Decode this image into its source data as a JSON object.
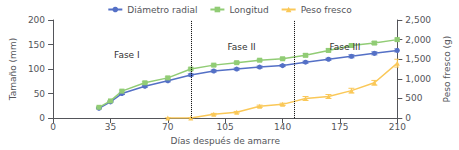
{
  "chart_data": {
    "type": "line",
    "xlabel": "Días después de amarre",
    "ylabel": "Tamaño (mm)",
    "y2label": "Peso fresco (g)",
    "xlim": [
      0,
      210
    ],
    "xticks": [
      0,
      35,
      70,
      105,
      140,
      175,
      210
    ],
    "ylim": [
      0,
      200
    ],
    "yticks": [
      0,
      50,
      100,
      150,
      200
    ],
    "y2lim": [
      0,
      2500
    ],
    "y2ticks": [
      0,
      500,
      1000,
      1500,
      2000,
      2500
    ],
    "grid": false,
    "legend": "upper center",
    "series": [
      {
        "name": "Diámetro radial",
        "marker": "circle",
        "x": [
          28,
          35,
          42,
          56,
          70,
          84,
          98,
          112,
          126,
          140,
          154,
          168,
          182,
          196,
          210
        ],
        "values": [
          20,
          33,
          50,
          65,
          76,
          88,
          96,
          100,
          104,
          107,
          114,
          120,
          126,
          132,
          138
        ],
        "errors": [
          1,
          1,
          2,
          2,
          2,
          2,
          2,
          2,
          2,
          2,
          2,
          2,
          3,
          3,
          3
        ]
      },
      {
        "name": "Longitud",
        "marker": "square",
        "x": [
          28,
          35,
          42,
          56,
          70,
          84,
          98,
          112,
          126,
          140,
          154,
          168,
          182,
          196,
          210
        ],
        "values": [
          22,
          35,
          55,
          72,
          82,
          100,
          108,
          113,
          118,
          121,
          128,
          138,
          148,
          153,
          160
        ],
        "errors": [
          1,
          1,
          2,
          2,
          2,
          2,
          2,
          2,
          2,
          2,
          3,
          3,
          3,
          3,
          3
        ]
      },
      {
        "name": "Peso fresco",
        "marker": "triangle",
        "axis": "y2",
        "x": [
          70,
          84,
          98,
          112,
          126,
          140,
          154,
          168,
          182,
          196,
          210
        ],
        "values": [
          0,
          0,
          100,
          150,
          300,
          350,
          500,
          550,
          700,
          900,
          1400
        ],
        "errors": [
          0,
          0,
          20,
          20,
          30,
          30,
          50,
          50,
          60,
          60,
          100
        ]
      }
    ],
    "vlines": [
      84,
      147
    ],
    "annotations": [
      {
        "text": "Fase I",
        "x": 45,
        "y": 138
      },
      {
        "text": "Fase II",
        "x": 115,
        "y": 155
      },
      {
        "text": "Fase III",
        "x": 178,
        "y": 155
      }
    ]
  }
}
